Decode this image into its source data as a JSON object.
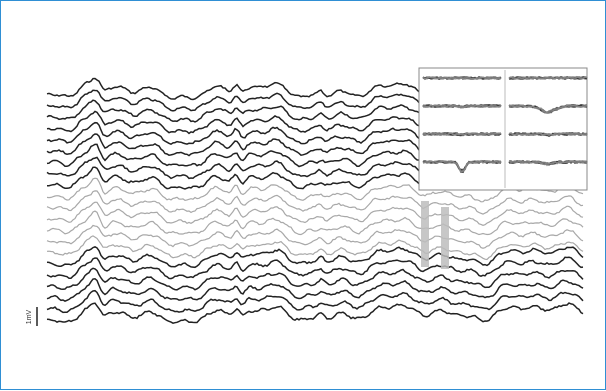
{
  "figure": {
    "scale_bar_label": "1mV",
    "colors": {
      "frame": "#2f8fd4",
      "trace_dark": "#222222",
      "trace_light": "#a8a8a8",
      "spike_band": "#bdbdbd",
      "waveform": "#2b2b2b",
      "inset_border": "#888888"
    },
    "traces": {
      "dark_top": 9,
      "light_middle": 6,
      "dark_bottom": 6
    },
    "inset": {
      "rows": 4,
      "cols": 2
    }
  }
}
